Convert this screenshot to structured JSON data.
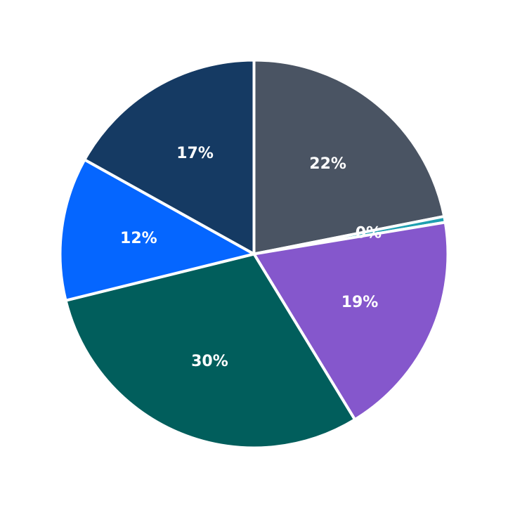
{
  "chart_data": {
    "type": "pie",
    "start_angle_deg": 90,
    "direction": "clockwise",
    "slices": [
      {
        "label": "22%",
        "value": 22.0,
        "color": "#4a5463"
      },
      {
        "label": "0%",
        "value": 0.5,
        "color": "#1f9fb0"
      },
      {
        "label": "19%",
        "value": 19.0,
        "color": "#8557cc"
      },
      {
        "label": "30%",
        "value": 30.0,
        "color": "#015e5c"
      },
      {
        "label": "12%",
        "value": 12.0,
        "color": "#0566ff"
      },
      {
        "label": "17%",
        "value": 17.0,
        "color": "#153a63"
      }
    ]
  }
}
